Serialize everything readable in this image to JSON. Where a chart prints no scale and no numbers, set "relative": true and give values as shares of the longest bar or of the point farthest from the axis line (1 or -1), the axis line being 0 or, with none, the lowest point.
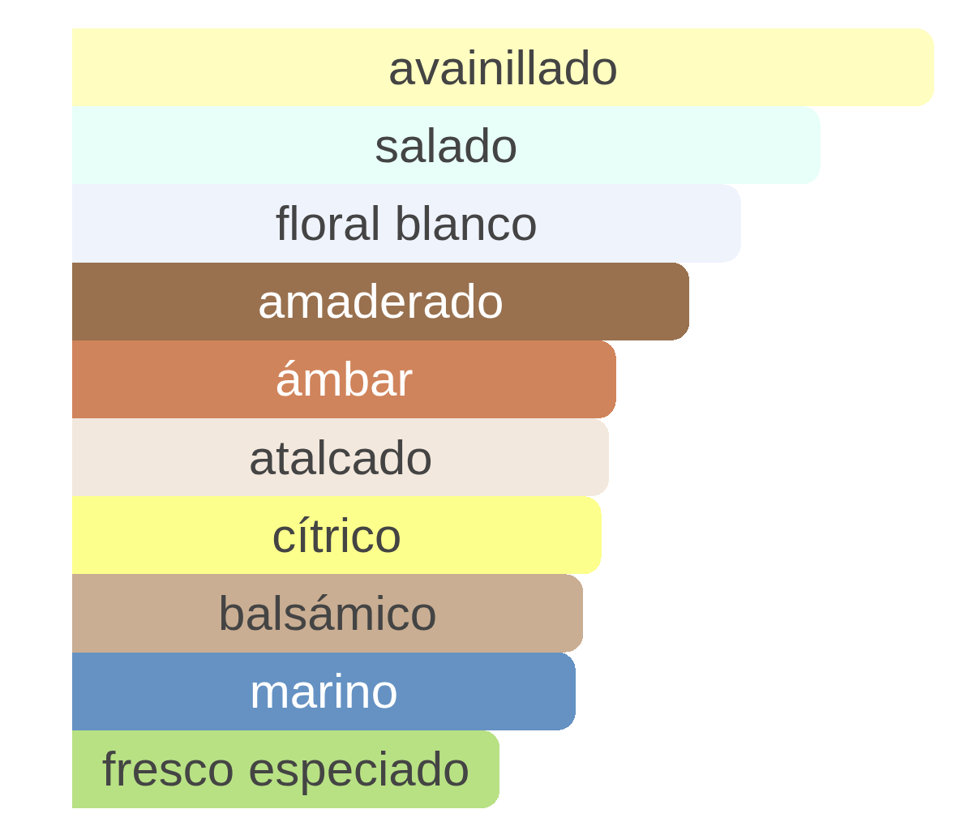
{
  "chart_data": {
    "type": "bar",
    "orientation": "horizontal",
    "relative": true,
    "categories": [
      "avainillado",
      "salado",
      "floral blanco",
      "amaderado",
      "ámbar",
      "atalcado",
      "cítrico",
      "balsámico",
      "marino",
      "fresco especiado"
    ],
    "values": [
      1,
      0.868,
      0.776,
      0.716,
      0.631,
      0.623,
      0.614,
      0.593,
      0.584,
      0.496
    ],
    "colors": [
      "#fffdc0",
      "#e8fff9",
      "#eff3fc",
      "#99714f",
      "#d0845b",
      "#f3e8dd",
      "#fcff8b",
      "#c9ae93",
      "#6592c3",
      "#b8e184"
    ]
  }
}
